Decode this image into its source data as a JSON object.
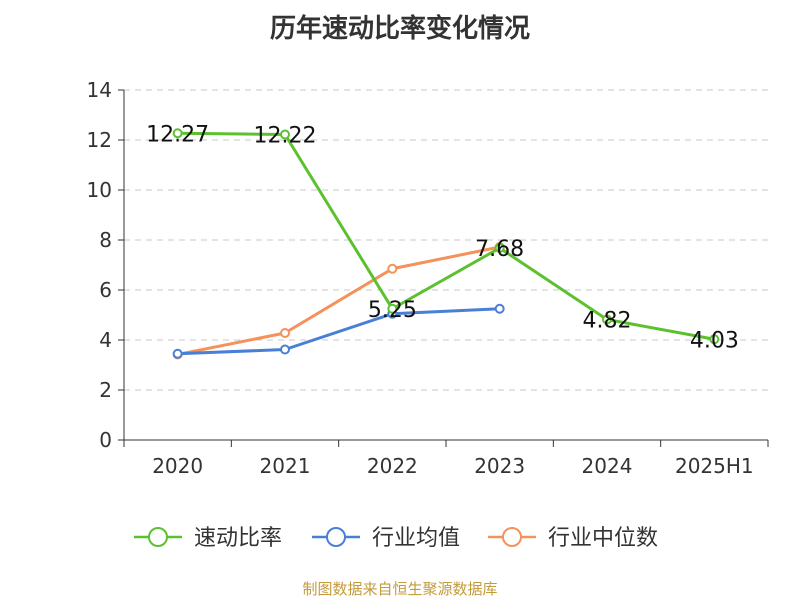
{
  "chart_data": {
    "type": "line",
    "title": "历年速动比率变化情况",
    "categories": [
      "2020",
      "2021",
      "2022",
      "2023",
      "2024",
      "2025H1"
    ],
    "ylim": [
      0,
      14
    ],
    "yticks": [
      0,
      2,
      4,
      6,
      8,
      10,
      12,
      14
    ],
    "grid": true,
    "legend_position": "bottom",
    "series": [
      {
        "name": "速动比率",
        "color": "#5cc12e",
        "values": [
          12.27,
          12.22,
          5.25,
          7.68,
          4.82,
          4.03
        ],
        "labels": [
          "12.27",
          "12.22",
          "5.25",
          "7.68",
          "4.82",
          "4.03"
        ]
      },
      {
        "name": "行业均值",
        "color": "#4a7fd6",
        "values": [
          3.45,
          3.62,
          5.05,
          5.25,
          null,
          null
        ]
      },
      {
        "name": "行业中位数",
        "color": "#f5915a",
        "values": [
          3.42,
          4.28,
          6.85,
          7.72,
          null,
          null
        ]
      }
    ]
  },
  "source": "制图数据来自恒生聚源数据库"
}
